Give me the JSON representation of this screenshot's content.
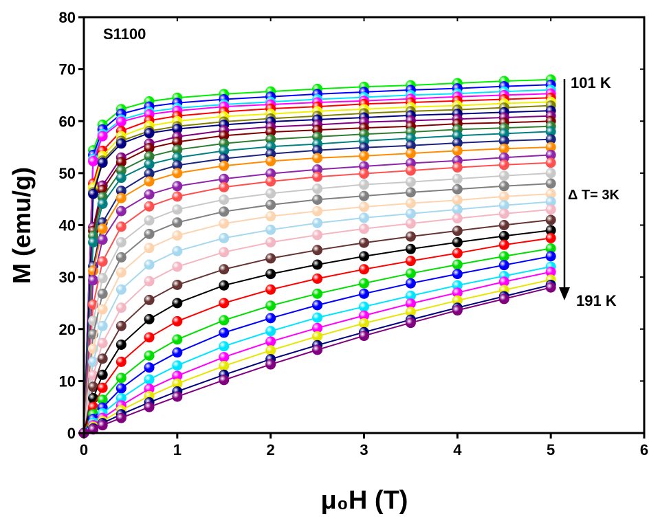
{
  "chart_data": {
    "type": "line",
    "x_label": "μ₀H (T)",
    "y_label": "M (emu/g)",
    "annotations": [
      "S1100",
      "101 K",
      "Δ T= 3K",
      "191 K"
    ],
    "xlim": [
      0,
      6
    ],
    "ylim": [
      0,
      80
    ],
    "xticks": [
      0,
      1,
      2,
      3,
      4,
      5,
      6
    ],
    "yticks": [
      0,
      10,
      20,
      30,
      40,
      50,
      60,
      70,
      80
    ],
    "markers": true,
    "x": [
      0,
      0.1,
      0.2,
      0.4,
      0.7,
      1,
      1.5,
      2,
      2.5,
      3,
      3.5,
      4,
      4.5,
      5
    ],
    "series": [
      {
        "color": "#00ee00",
        "values": [
          0,
          54.4,
          59.3,
          62.3,
          63.8,
          64.5,
          65.2,
          65.7,
          66.2,
          66.6,
          66.9,
          67.3,
          67.7,
          68.0
        ]
      },
      {
        "color": "#0000ff",
        "values": [
          0,
          53.5,
          58.4,
          61.4,
          62.8,
          63.5,
          64.2,
          64.7,
          65.2,
          65.6,
          66.0,
          66.3,
          66.7,
          67.0
        ]
      },
      {
        "color": "#00e5ff",
        "values": [
          0,
          52.7,
          57.5,
          60.3,
          61.8,
          62.5,
          63.2,
          63.7,
          64.2,
          64.6,
          65.0,
          65.3,
          65.7,
          66.0
        ]
      },
      {
        "color": "#ff00ff",
        "values": [
          0,
          52.3,
          57.1,
          59.9,
          61.3,
          62.0,
          62.8,
          63.2,
          63.6,
          63.9,
          64.3,
          64.7,
          65.0,
          65.3
        ]
      },
      {
        "color": "#ff0000",
        "values": [
          0,
          48.0,
          54.3,
          58.1,
          60.1,
          61.0,
          61.8,
          62.4,
          62.8,
          63.3,
          63.6,
          63.9,
          64.2,
          64.5
        ]
      },
      {
        "color": "#f0f000",
        "values": [
          0,
          47.2,
          53.3,
          57.1,
          59.1,
          60.0,
          60.9,
          61.4,
          61.9,
          62.3,
          62.7,
          63.0,
          63.4,
          63.7
        ]
      },
      {
        "color": "#808000",
        "values": [
          0,
          46.3,
          52.4,
          56.2,
          58.1,
          59.0,
          59.9,
          60.5,
          61.0,
          61.5,
          61.9,
          62.2,
          62.6,
          63.0
        ]
      },
      {
        "color": "#000080",
        "values": [
          0,
          46.0,
          52.0,
          55.7,
          57.7,
          58.5,
          59.3,
          59.9,
          60.3,
          60.7,
          61.1,
          61.4,
          61.7,
          62.0
        ]
      },
      {
        "color": "#800080",
        "values": [
          0,
          39.6,
          47.6,
          53.0,
          55.7,
          57.0,
          58.2,
          58.9,
          59.3,
          59.8,
          60.1,
          60.4,
          60.7,
          61.0
        ]
      },
      {
        "color": "#800000",
        "values": [
          0,
          38.9,
          46.8,
          52.1,
          54.8,
          56.0,
          57.2,
          57.9,
          58.3,
          58.7,
          59.0,
          59.5,
          59.7,
          60.0
        ]
      },
      {
        "color": "#2e7d32",
        "values": [
          0,
          37.9,
          45.4,
          50.5,
          53.2,
          54.5,
          55.7,
          56.5,
          57.0,
          57.5,
          57.9,
          58.4,
          58.7,
          59.0
        ]
      },
      {
        "color": "#008080",
        "values": [
          0,
          36.7,
          44.1,
          49.1,
          51.7,
          53.0,
          54.3,
          55.1,
          55.6,
          56.2,
          56.7,
          57.2,
          57.6,
          58.0
        ]
      },
      {
        "color": "#1a237e",
        "values": [
          0,
          32.1,
          40.5,
          46.6,
          49.9,
          51.5,
          52.8,
          53.7,
          54.4,
          54.9,
          55.3,
          55.8,
          56.2,
          56.5
        ]
      },
      {
        "color": "#ff8c00",
        "values": [
          0,
          31.2,
          39.3,
          45.2,
          48.4,
          50.0,
          51.4,
          52.3,
          52.9,
          53.3,
          53.8,
          54.3,
          54.7,
          55.0
        ]
      },
      {
        "color": "#8e24aa",
        "values": [
          0,
          29.4,
          37.2,
          42.7,
          45.9,
          47.5,
          48.9,
          49.9,
          50.7,
          51.3,
          51.9,
          52.4,
          53.0,
          53.5
        ]
      },
      {
        "color": "#ff5050",
        "values": [
          0,
          24.7,
          33.0,
          39.7,
          43.6,
          45.5,
          47.3,
          48.4,
          49.3,
          49.9,
          50.5,
          51.1,
          51.6,
          52.0
        ]
      },
      {
        "color": "#c8c8c8",
        "values": [
          0,
          21.6,
          29.8,
          36.7,
          40.9,
          43.0,
          44.9,
          46.1,
          47.0,
          47.8,
          48.3,
          48.9,
          49.5,
          50.0
        ]
      },
      {
        "color": "#808080",
        "values": [
          0,
          19.0,
          26.8,
          33.8,
          38.3,
          40.5,
          42.6,
          43.9,
          44.9,
          45.6,
          46.3,
          46.9,
          47.5,
          48.0
        ]
      },
      {
        "color": "#fcd5b0",
        "values": [
          0,
          16.2,
          23.8,
          30.9,
          35.6,
          38.0,
          40.3,
          41.7,
          42.7,
          43.5,
          44.2,
          44.8,
          45.5,
          46.0
        ]
      },
      {
        "color": "#a6d8f0",
        "values": [
          0,
          13.7,
          20.6,
          27.6,
          32.4,
          35.0,
          37.5,
          39.1,
          40.4,
          41.4,
          42.2,
          43.0,
          43.8,
          44.5
        ]
      },
      {
        "color": "#f4b6c2",
        "values": [
          0,
          11.1,
          17.3,
          24.1,
          29.2,
          32.0,
          34.8,
          36.7,
          38.1,
          39.3,
          40.3,
          41.3,
          42.2,
          43.0
        ]
      },
      {
        "color": "#663333",
        "values": [
          0,
          8.9,
          14.3,
          20.6,
          25.6,
          28.5,
          31.5,
          33.6,
          35.2,
          36.6,
          37.8,
          38.9,
          40.0,
          41.0
        ]
      },
      {
        "color": "#000000",
        "values": [
          0,
          6.7,
          11.2,
          17.0,
          21.9,
          25.0,
          28.4,
          30.6,
          32.4,
          34.0,
          35.4,
          36.7,
          37.9,
          39.0
        ]
      },
      {
        "color": "#ff0000",
        "values": [
          0,
          5.0,
          8.7,
          13.7,
          18.4,
          21.5,
          25.0,
          27.6,
          29.7,
          31.5,
          33.1,
          34.6,
          36.2,
          37.5
        ]
      },
      {
        "color": "#00dd00",
        "values": [
          0,
          3.6,
          6.4,
          10.6,
          14.9,
          18.0,
          21.7,
          24.5,
          26.8,
          28.8,
          30.7,
          32.4,
          34.0,
          35.5
        ]
      },
      {
        "color": "#0000ff",
        "values": [
          0,
          2.7,
          4.9,
          8.6,
          12.6,
          15.5,
          19.3,
          22.1,
          24.6,
          26.8,
          28.8,
          30.6,
          32.3,
          34.0
        ]
      },
      {
        "color": "#00e5ff",
        "values": [
          0,
          2.0,
          3.8,
          6.7,
          10.3,
          13.0,
          16.7,
          19.6,
          22.2,
          24.3,
          26.4,
          28.4,
          30.2,
          32.0
        ]
      },
      {
        "color": "#ff00ff",
        "values": [
          0,
          1.5,
          2.9,
          5.3,
          8.5,
          11.0,
          14.6,
          17.6,
          20.2,
          22.6,
          24.9,
          27.0,
          29.1,
          31.0
        ]
      },
      {
        "color": "#e6e600",
        "values": [
          0,
          1.2,
          2.3,
          4.4,
          7.1,
          9.5,
          12.9,
          15.9,
          18.6,
          21.1,
          23.3,
          25.5,
          27.5,
          29.5
        ]
      },
      {
        "color": "#000080",
        "values": [
          0,
          0.9,
          1.9,
          3.6,
          5.9,
          8.0,
          11.2,
          14.2,
          16.9,
          19.4,
          21.8,
          24.1,
          26.3,
          28.5
        ]
      },
      {
        "color": "#800080",
        "values": [
          0,
          0.7,
          1.5,
          2.9,
          5.0,
          7.0,
          10.2,
          13.2,
          16.0,
          18.7,
          21.2,
          23.6,
          25.8,
          28.0
        ]
      }
    ]
  }
}
